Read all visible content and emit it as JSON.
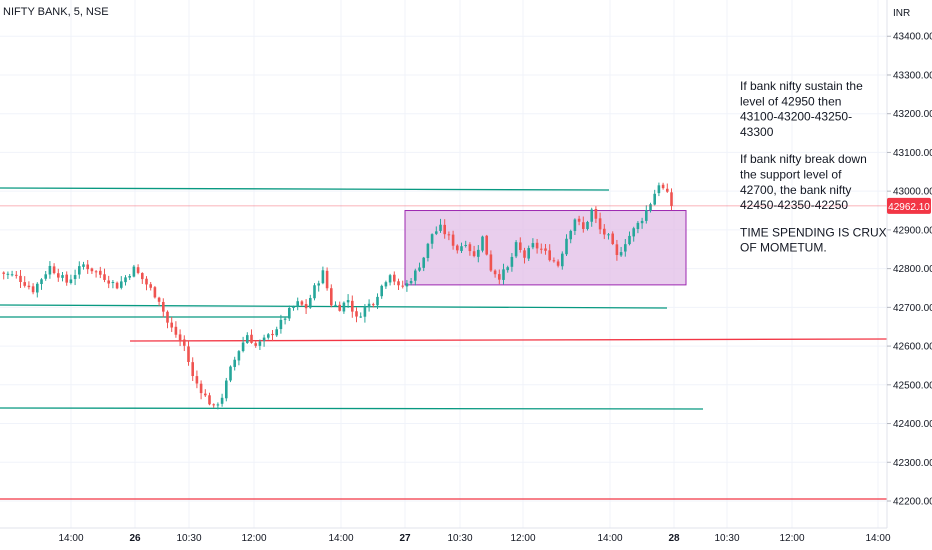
{
  "symbol_title": "NIFTY BANK, 5, NSE",
  "currency_label": "INR",
  "last_price_label": "42962.10",
  "colors": {
    "up": "#26a69a",
    "down": "#ef5350",
    "trend_line": "#089981",
    "resistance_red": "#f23645",
    "box_fill": "#e1bee7",
    "box_stroke": "#9c27b0",
    "last_price_bg": "#f23645",
    "grid": "#f0f3fa"
  },
  "notes": [
    "If bank nifty sustain the",
    "level of 42950 then",
    "43100-43200-43250-",
    "43300",
    "",
    "If bank nifty break down",
    "the support level of",
    "42700, the bank nifty",
    "42450-42350-42250",
    "",
    "TIME SPENDING IS CRUX",
    "OF MOMETUM."
  ],
  "chart_data": {
    "type": "candlestick",
    "title": "NIFTY BANK, 5, NSE",
    "y_unit": "INR",
    "ylim": [
      42160,
      43420
    ],
    "y_ticks": [
      "43400.00",
      "43300.00",
      "43200.00",
      "43100.00",
      "43000.00",
      "42900.00",
      "42800.00",
      "42700.00",
      "42600.00",
      "42500.00",
      "42400.00",
      "42300.00",
      "42200.00"
    ],
    "x_ticks": [
      {
        "label": "14:00",
        "bold": false
      },
      {
        "label": "26",
        "bold": true
      },
      {
        "label": "10:30",
        "bold": false
      },
      {
        "label": "12:00",
        "bold": false
      },
      {
        "label": "14:00",
        "bold": false
      },
      {
        "label": "27",
        "bold": true
      },
      {
        "label": "10:30",
        "bold": false
      },
      {
        "label": "12:00",
        "bold": false
      },
      {
        "label": "14:00",
        "bold": false
      },
      {
        "label": "28",
        "bold": true
      },
      {
        "label": "10:30",
        "bold": false
      },
      {
        "label": "12:00",
        "bold": false
      },
      {
        "label": "14:00",
        "bold": false
      }
    ],
    "close_path": [
      [
        0,
        42790
      ],
      [
        4,
        42780
      ],
      [
        8,
        42745
      ],
      [
        12,
        42805
      ],
      [
        16,
        42765
      ],
      [
        20,
        42810
      ],
      [
        24,
        42785
      ],
      [
        28,
        42755
      ],
      [
        32,
        42800
      ],
      [
        38,
        42720
      ],
      [
        40,
        42660
      ],
      [
        44,
        42600
      ],
      [
        46,
        42520
      ],
      [
        49,
        42470
      ],
      [
        51,
        42440
      ],
      [
        53,
        42470
      ],
      [
        55,
        42540
      ],
      [
        57,
        42590
      ],
      [
        59,
        42630
      ],
      [
        61,
        42600
      ],
      [
        63,
        42615
      ],
      [
        65,
        42635
      ],
      [
        67,
        42660
      ],
      [
        69,
        42690
      ],
      [
        71,
        42710
      ],
      [
        73,
        42700
      ],
      [
        75,
        42750
      ],
      [
        77,
        42790
      ],
      [
        79,
        42710
      ],
      [
        81,
        42700
      ],
      [
        83,
        42720
      ],
      [
        85,
        42670
      ],
      [
        87,
        42700
      ],
      [
        89,
        42715
      ],
      [
        91,
        42755
      ],
      [
        93,
        42790
      ],
      [
        95,
        42750
      ],
      [
        97,
        42760
      ],
      [
        99,
        42790
      ],
      [
        101,
        42830
      ],
      [
        103,
        42890
      ],
      [
        105,
        42905
      ],
      [
        107,
        42880
      ],
      [
        109,
        42850
      ],
      [
        111,
        42870
      ],
      [
        113,
        42830
      ],
      [
        115,
        42880
      ],
      [
        117,
        42800
      ],
      [
        119,
        42780
      ],
      [
        121,
        42800
      ],
      [
        123,
        42860
      ],
      [
        125,
        42830
      ],
      [
        127,
        42860
      ],
      [
        129,
        42850
      ],
      [
        131,
        42830
      ],
      [
        133,
        42810
      ],
      [
        135,
        42880
      ],
      [
        137,
        42930
      ],
      [
        139,
        42900
      ],
      [
        141,
        42950
      ],
      [
        143,
        42900
      ],
      [
        145,
        42880
      ],
      [
        147,
        42830
      ],
      [
        149,
        42870
      ],
      [
        151,
        42900
      ],
      [
        153,
        42930
      ],
      [
        155,
        42970
      ],
      [
        157,
        43020
      ],
      [
        159,
        42990
      ],
      [
        160,
        42962.1
      ]
    ],
    "support_resistance_lines": [
      {
        "name": "upper_trend",
        "y1": 43003,
        "y2": 42998
      },
      {
        "name": "box_top",
        "price": 42950
      },
      {
        "name": "box_bottom",
        "price": 42758
      },
      {
        "name": "mid_support",
        "y1": 42710,
        "y2": 42693
      },
      {
        "name": "lower_support_a",
        "price": 42678
      },
      {
        "name": "red_resistance",
        "y1": 42611,
        "y2": 42615
      },
      {
        "name": "lower_trend",
        "y1": 42440,
        "y2": 42438
      },
      {
        "name": "red_bottom",
        "price": 42226
      }
    ],
    "last_price": 42962.1
  }
}
